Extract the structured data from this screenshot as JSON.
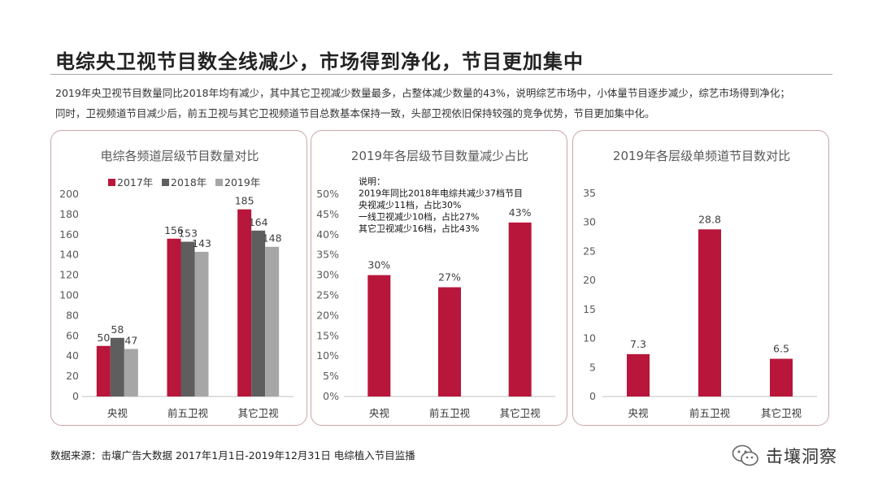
{
  "title": "电综央卫视节目数全线减少，市场得到净化，节目更加集中",
  "description": [
    "2019年央卫视节目数量同比2018年均有减少，其中其它卫视减少数量最多，占整体减少数量的43%，说明综艺市场中，小体量节目逐步减少，综艺市场得到净化；",
    "同时，卫视频道节目减少后，前五卫视与其它卫视频道节目总数基本保持一致，头部卫视依旧保持较强的竞争优势，节目更加集中化。"
  ],
  "source": "数据来源：击壤广告大数据 2017年1月1日-2019年12月31日 电综植入节目监播",
  "brand": {
    "name": "击壤洞察",
    "icon": "wechat-icon"
  },
  "colors": {
    "red": "#b8163a",
    "dark_gray": "#5e5e5e",
    "light_gray": "#a6a6a6"
  },
  "chart_data": [
    {
      "type": "bar",
      "title": "电综各频道层级节目数量对比",
      "categories": [
        "央视",
        "前五卫视",
        "其它卫视"
      ],
      "series": [
        {
          "name": "2017年",
          "color": "#b8163a",
          "values": [
            50,
            156,
            185
          ]
        },
        {
          "name": "2018年",
          "color": "#5e5e5e",
          "values": [
            58,
            153,
            164
          ]
        },
        {
          "name": "2019年",
          "color": "#a6a6a6",
          "values": [
            47,
            143,
            148
          ]
        }
      ],
      "ylim": [
        0,
        200
      ],
      "yticks": [
        "0",
        "20",
        "40",
        "60",
        "80",
        "100",
        "120",
        "140",
        "160",
        "180",
        "200"
      ],
      "legend": "top",
      "grid": false
    },
    {
      "type": "bar",
      "title": "2019年各层级节目数量减少占比",
      "categories": [
        "央视",
        "前五卫视",
        "其它卫视"
      ],
      "values": [
        30,
        27,
        43
      ],
      "labels": [
        "30%",
        "27%",
        "43%"
      ],
      "ylim": [
        0,
        50
      ],
      "yticks": [
        "0%",
        "5%",
        "10%",
        "15%",
        "20%",
        "25%",
        "30%",
        "35%",
        "40%",
        "45%",
        "50%"
      ],
      "note": [
        "说明：",
        "2019年同比2018年电综共减少37档节目",
        "央视减少11档，占比30%",
        "一线卫视减少10档，占比27%",
        "其它卫视减少16档，占比43%"
      ],
      "grid": false
    },
    {
      "type": "bar",
      "title": "2019年各层级单频道节目数对比",
      "categories": [
        "央视",
        "前五卫视",
        "其它卫视"
      ],
      "values": [
        7.3,
        28.8,
        6.5
      ],
      "labels": [
        "7.3",
        "28.8",
        "6.5"
      ],
      "ylim": [
        0,
        35
      ],
      "yticks": [
        "0",
        "5",
        "10",
        "15",
        "20",
        "25",
        "30",
        "35"
      ],
      "grid": false
    }
  ]
}
